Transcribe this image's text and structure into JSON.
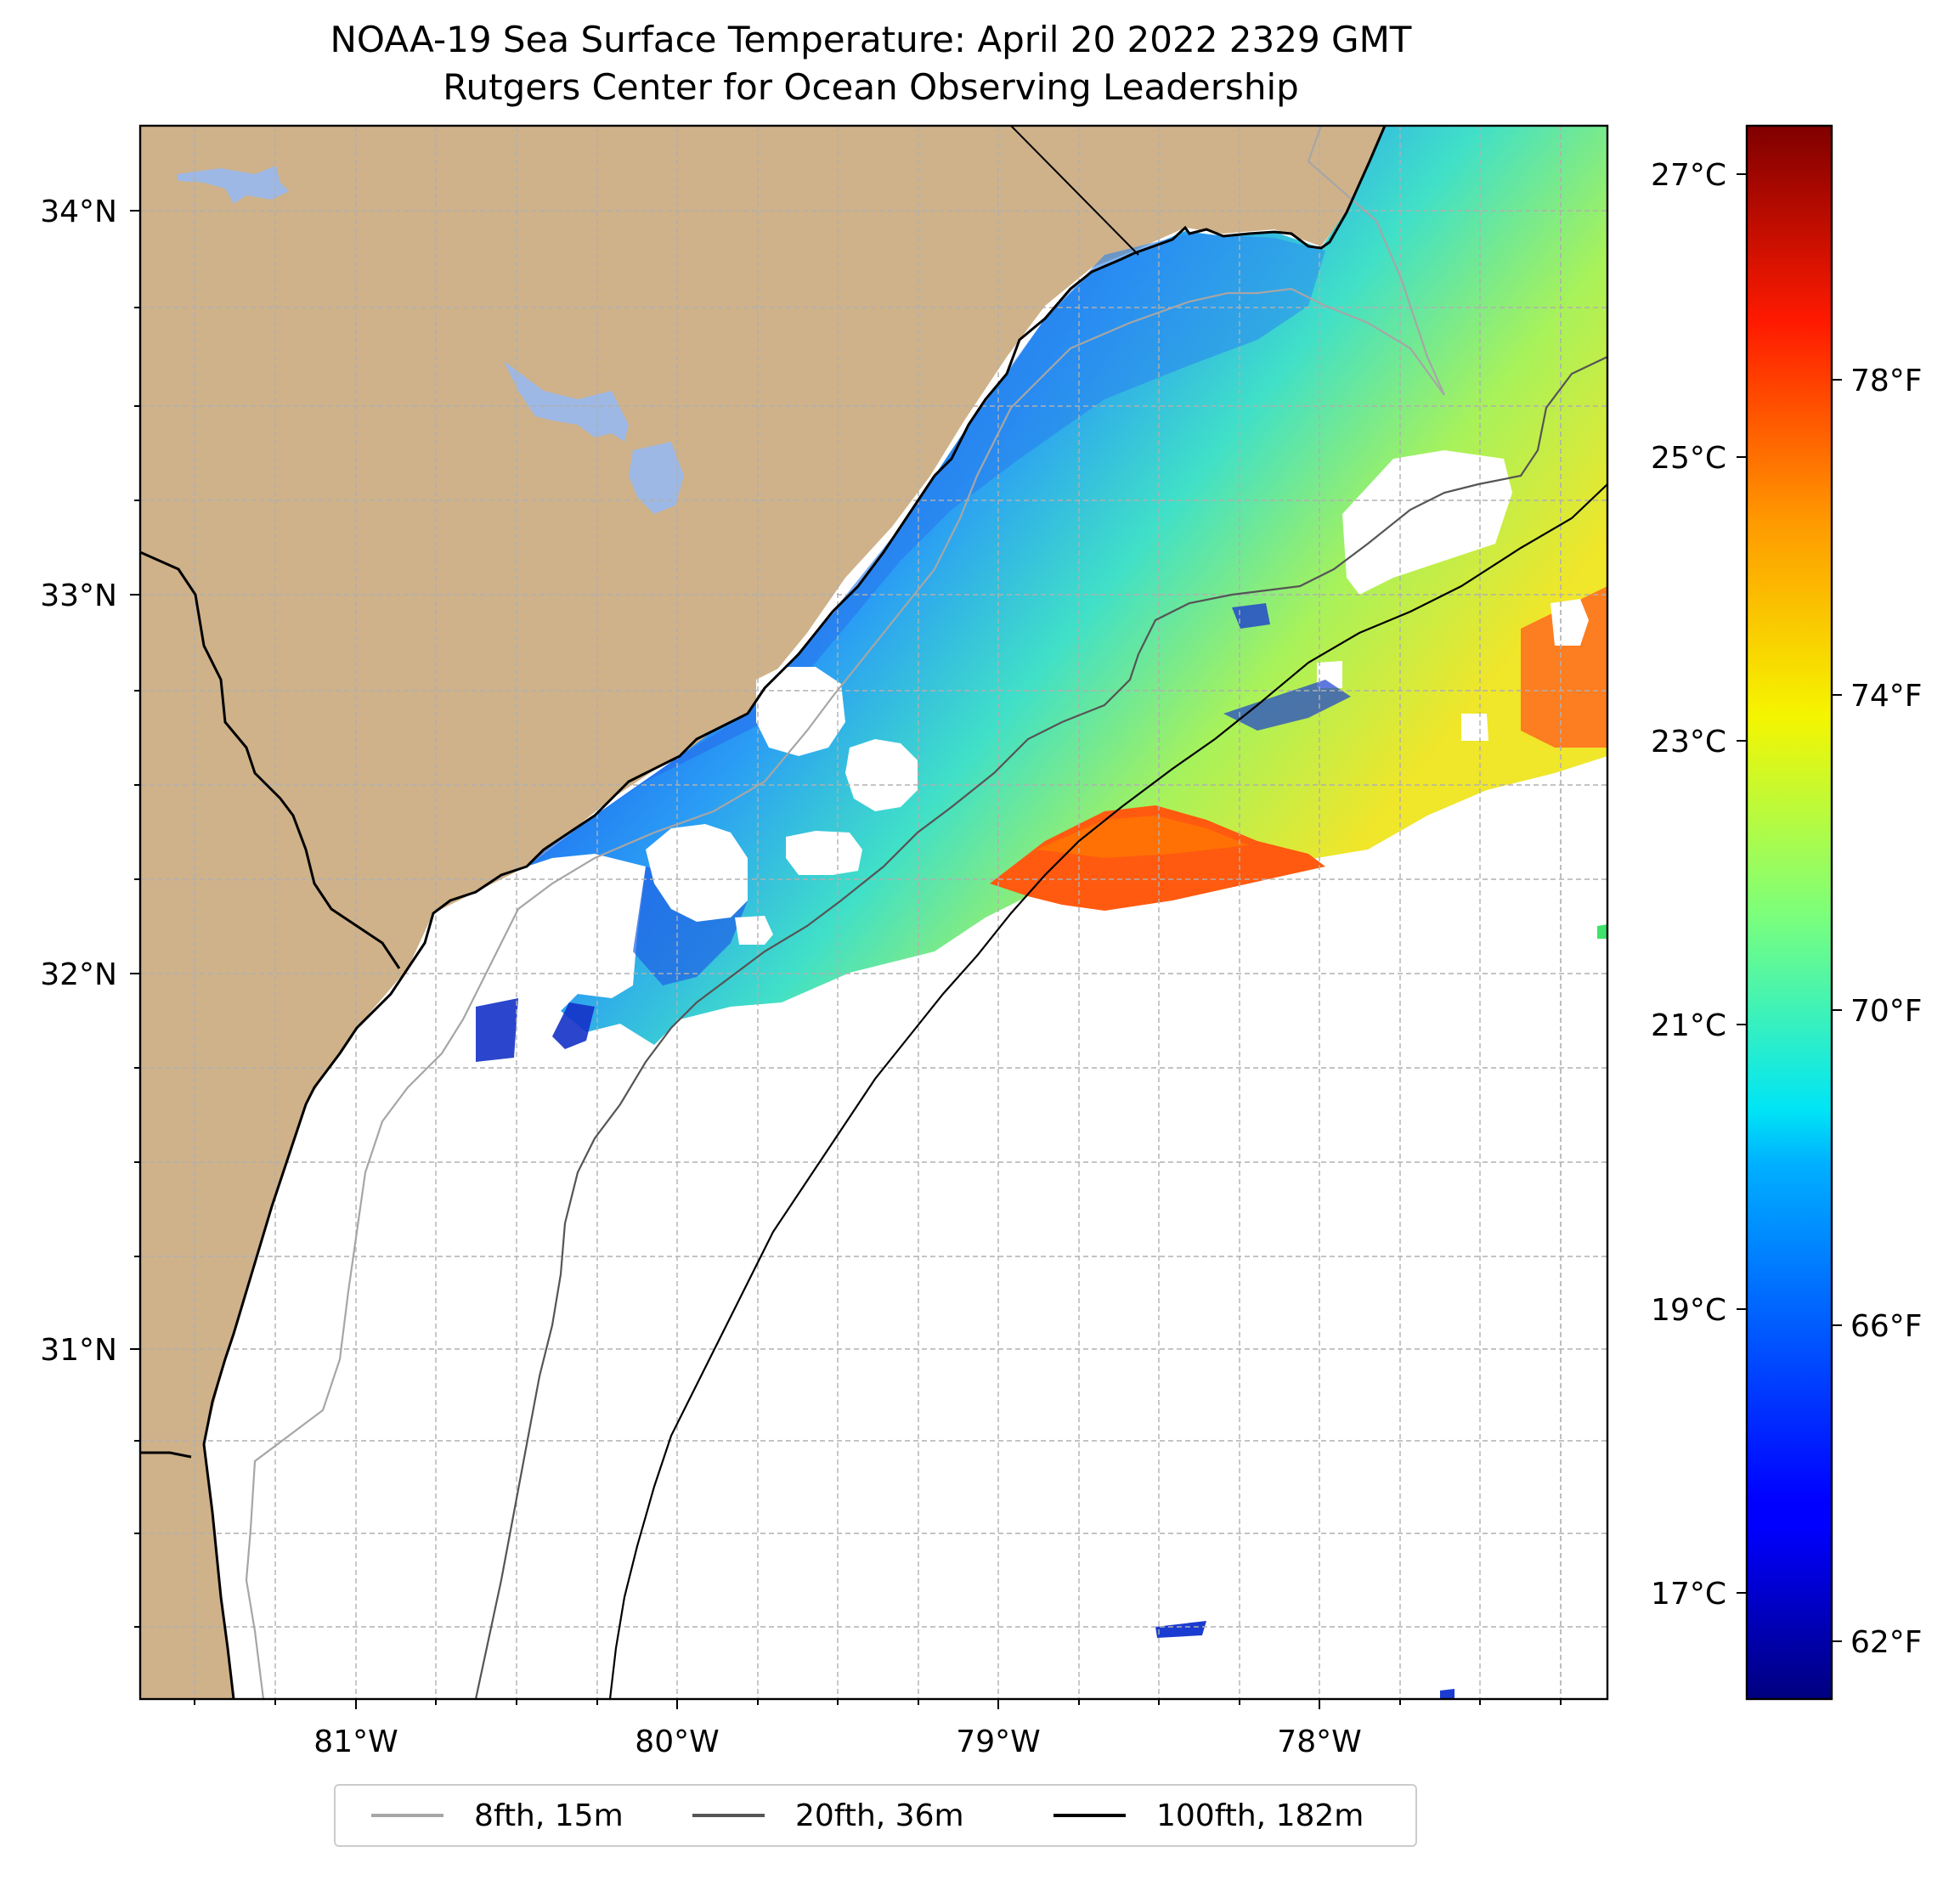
{
  "title": {
    "line1": "NOAA-19 Sea Surface Temperature: April 20 2022 2329 GMT",
    "line2": "Rutgers Center for Ocean Observing Leadership"
  },
  "colors": {
    "land": "#CFB28A",
    "lake": "#9DB8E4",
    "grid": "#b0b0b0",
    "coast": "#000000",
    "isobath_8fth": "#a6a6a6",
    "isobath_20fth": "#555555",
    "isobath_100fth": "#000000"
  },
  "map": {
    "lon_ticks": [
      "81°W",
      "80°W",
      "79°W",
      "78°W"
    ],
    "lat_ticks": [
      "34°N",
      "33°N",
      "32°N",
      "31°N"
    ]
  },
  "colorbar": {
    "colormap": "jet",
    "celsius_ticks": [
      "27°C",
      "25°C",
      "23°C",
      "21°C",
      "19°C",
      "17°C"
    ],
    "fahrenheit_ticks": [
      "78°F",
      "74°F",
      "70°F",
      "66°F",
      "62°F"
    ]
  },
  "legend": {
    "items": [
      {
        "label": "8fth, 15m",
        "color": "#a6a6a6"
      },
      {
        "label": "20fth, 36m",
        "color": "#555555"
      },
      {
        "label": "100fth, 182m",
        "color": "#000000"
      }
    ]
  }
}
